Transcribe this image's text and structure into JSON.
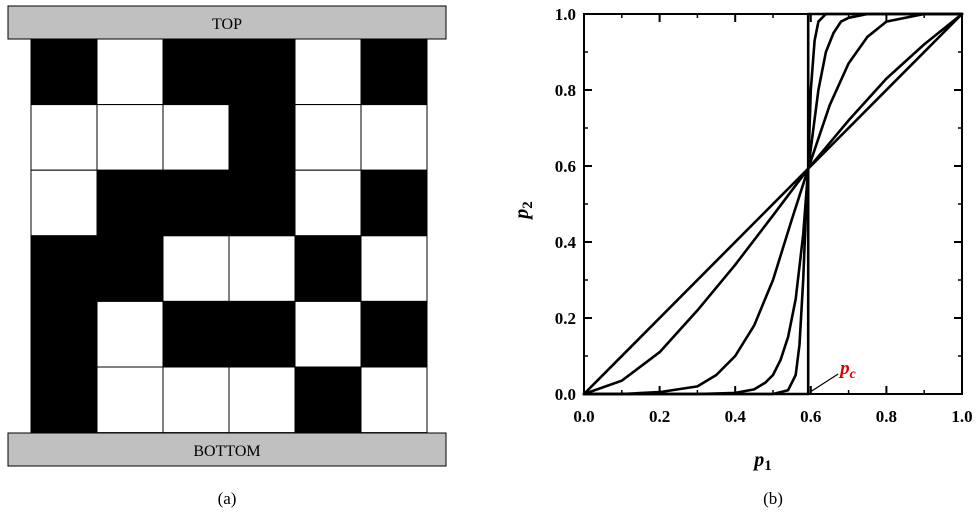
{
  "lattice_panel": {
    "top_label": "TOP",
    "bottom_label": "BOTTOM",
    "caption": "(a)",
    "grid": [
      [
        1,
        0,
        1,
        1,
        0,
        1
      ],
      [
        0,
        0,
        0,
        1,
        0,
        0
      ],
      [
        0,
        1,
        1,
        1,
        0,
        1
      ],
      [
        1,
        1,
        0,
        0,
        1,
        0
      ],
      [
        1,
        0,
        1,
        1,
        0,
        1
      ],
      [
        1,
        0,
        0,
        0,
        1,
        0
      ]
    ],
    "colors": {
      "filled": "#000000",
      "empty": "#ffffff",
      "plate": "#c0c0c0"
    }
  },
  "chart_data": {
    "type": "line",
    "caption": "(b)",
    "xlabel_main": "p",
    "xlabel_sub": "1",
    "ylabel_main": "p",
    "ylabel_sub": "2",
    "xlim": [
      0,
      1
    ],
    "ylim": [
      0,
      1
    ],
    "xticks": [
      "0.0",
      "0.2",
      "0.4",
      "0.6",
      "0.8",
      "1.0"
    ],
    "yticks": [
      "0.0",
      "0.2",
      "0.4",
      "0.6",
      "0.8",
      "1.0"
    ],
    "annotation": {
      "text_main": "p",
      "text_sub": "c",
      "x": 0.593,
      "color": "#e00000"
    },
    "series": [
      {
        "x": [
          0.0,
          1.0
        ],
        "y": [
          0.0,
          1.0
        ]
      },
      {
        "x": [
          0.0,
          0.1,
          0.2,
          0.3,
          0.4,
          0.5,
          0.593,
          0.7,
          0.8,
          0.9,
          1.0
        ],
        "y": [
          0.0,
          0.035,
          0.11,
          0.22,
          0.34,
          0.47,
          0.593,
          0.72,
          0.83,
          0.92,
          1.0
        ]
      },
      {
        "x": [
          0.0,
          0.1,
          0.2,
          0.3,
          0.35,
          0.4,
          0.45,
          0.5,
          0.55,
          0.593,
          0.65,
          0.7,
          0.75,
          0.8,
          0.9,
          1.0
        ],
        "y": [
          0.0,
          0.0,
          0.005,
          0.02,
          0.05,
          0.1,
          0.18,
          0.3,
          0.46,
          0.593,
          0.76,
          0.87,
          0.94,
          0.98,
          1.0,
          1.0
        ]
      },
      {
        "x": [
          0.0,
          0.3,
          0.4,
          0.45,
          0.48,
          0.5,
          0.52,
          0.54,
          0.56,
          0.58,
          0.593,
          0.62,
          0.64,
          0.66,
          0.68,
          0.7,
          0.75,
          1.0
        ],
        "y": [
          0.0,
          0.0,
          0.003,
          0.012,
          0.03,
          0.05,
          0.09,
          0.15,
          0.25,
          0.42,
          0.593,
          0.8,
          0.9,
          0.95,
          0.98,
          0.99,
          1.0,
          1.0
        ]
      },
      {
        "x": [
          0.0,
          0.5,
          0.54,
          0.56,
          0.57,
          0.58,
          0.586,
          0.593,
          0.6,
          0.61,
          0.62,
          0.64,
          0.66,
          1.0
        ],
        "y": [
          0.0,
          0.0,
          0.01,
          0.05,
          0.13,
          0.3,
          0.45,
          0.593,
          0.8,
          0.93,
          0.98,
          1.0,
          1.0,
          1.0
        ]
      },
      {
        "x": [
          0.0,
          0.593,
          0.593,
          1.0
        ],
        "y": [
          0.0,
          0.0,
          1.0,
          1.0
        ]
      }
    ]
  }
}
